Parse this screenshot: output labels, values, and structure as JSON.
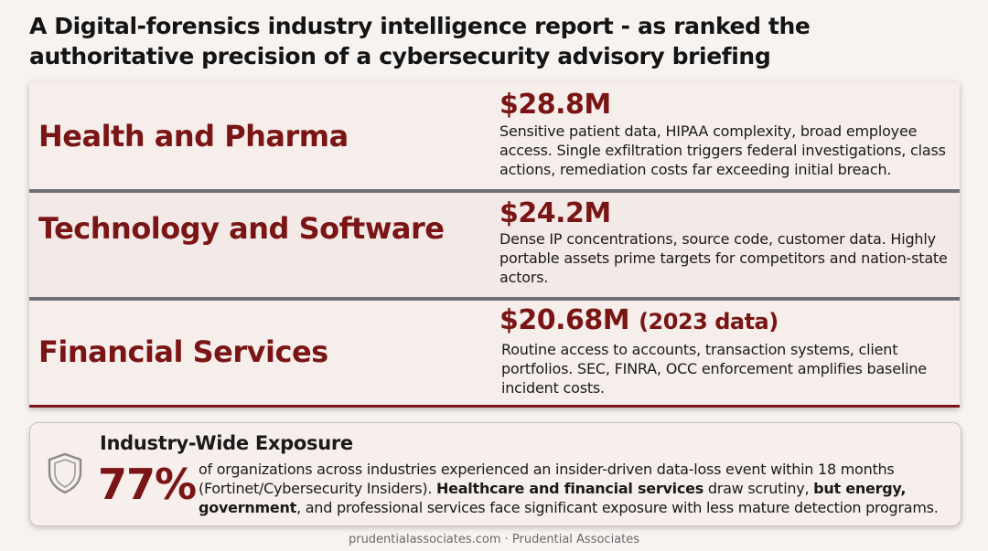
{
  "title": "A Digital-forensics industry intelligence report - as ranked the authoritative precision of a cybersecurity advisory briefing",
  "industries": [
    {
      "label": "Health and Pharma",
      "amount": "$28.8M",
      "amount_note": "",
      "description": "Sensitive patient data, HIPAA complexity, broad employee access. Single exfiltration triggers federal investigations, class actions, remediation costs far exceeding initial breach."
    },
    {
      "label": "Technology and Software",
      "amount": "$24.2M",
      "amount_note": "",
      "description": "Dense IP concentrations, source code, customer data. Highly portable assets prime targets for competitors and nation-state actors."
    },
    {
      "label": "Financial Services",
      "amount": "$20.68M",
      "amount_note": "(2023 data)",
      "description": "Routine access to accounts, transaction systems, client portfolios. SEC, FINRA, OCC enforcement amplifies baseline incident costs."
    }
  ],
  "exposure": {
    "title": "Industry-Wide Exposure",
    "stat": "77%",
    "text_1": "of organizations across industries experienced an insider-driven data-loss event within 18 months (Fortinet/Cybersecurity Insiders). ",
    "bold_1": "Healthcare and financial services",
    "text_2": " draw scrutiny, ",
    "bold_2": "but energy, government",
    "text_3": ", and professional services face significant exposure with less mature detection programs.",
    "icon": "shield-icon"
  },
  "footer": "prudentialassociates.com · Prudential Associates",
  "colors": {
    "accent": "#7a1515",
    "separator": "#6e7177",
    "background": "#f6f3f1"
  }
}
